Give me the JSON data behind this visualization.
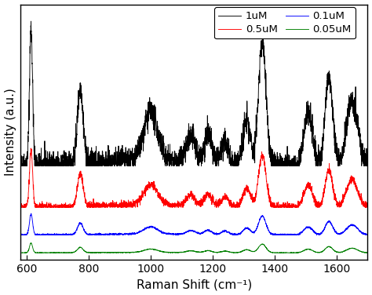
{
  "xlabel": "Raman Shift (cm⁻¹)",
  "ylabel": "Intensity (a.u.)",
  "xlim": [
    580,
    1700
  ],
  "xticks": [
    600,
    800,
    1000,
    1200,
    1400,
    1600
  ],
  "colors": [
    "black",
    "red",
    "blue",
    "green"
  ],
  "labels": [
    "1uM",
    "0.5uM",
    "0.1uM",
    "0.05uM"
  ],
  "offsets": [
    0.68,
    0.38,
    0.18,
    0.05
  ],
  "amplitudes": [
    1.0,
    0.42,
    0.15,
    0.07
  ],
  "peaks": [
    614,
    773,
    1000,
    1130,
    1185,
    1240,
    1310,
    1360,
    1508,
    1575,
    1650
  ],
  "peak_heights": [
    1.0,
    0.55,
    0.35,
    0.18,
    0.2,
    0.16,
    0.32,
    0.9,
    0.38,
    0.65,
    0.48
  ],
  "peak_widths": [
    5,
    9,
    22,
    14,
    12,
    12,
    12,
    12,
    14,
    12,
    18
  ],
  "noise_level": 0.018,
  "background_color": "#ffffff",
  "fig_bgcolor": "white",
  "legend_order": [
    "1uM",
    "0.5uM",
    "0.1uM",
    "0.05uM"
  ]
}
